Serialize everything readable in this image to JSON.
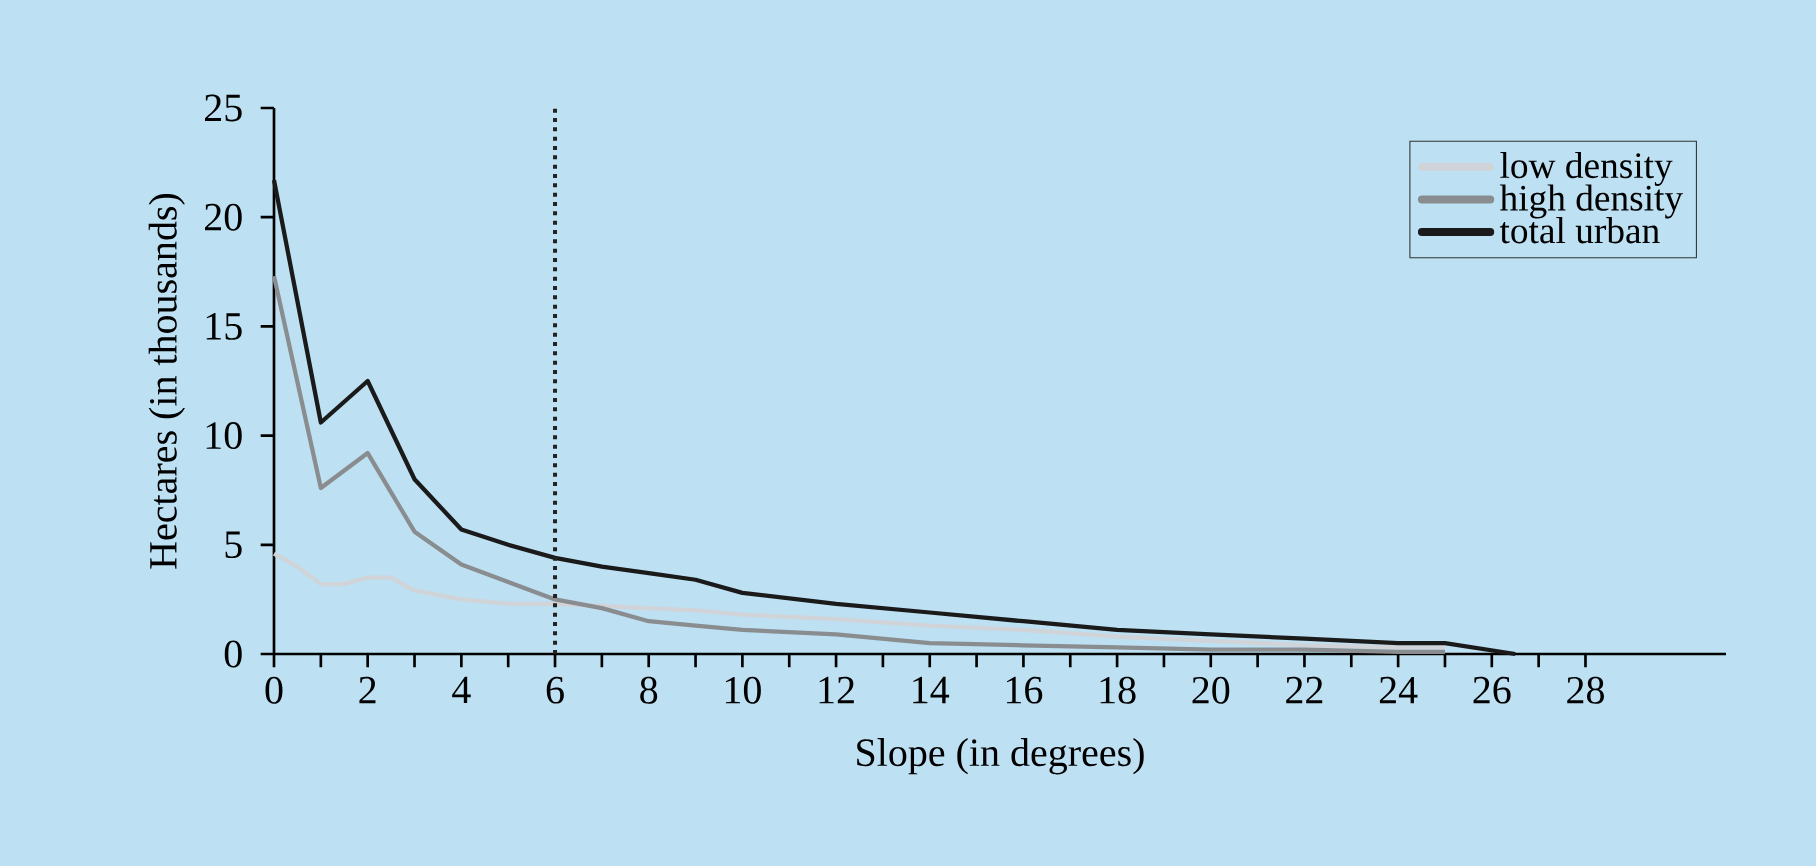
{
  "chart_data": {
    "type": "line",
    "xlabel": "Slope (in degrees)",
    "ylabel": "Hectares (in thousands)",
    "xlim": [
      0,
      31
    ],
    "xticks": [
      0,
      2,
      4,
      6,
      8,
      10,
      12,
      14,
      16,
      18,
      20,
      22,
      24,
      26,
      28
    ],
    "ylim": [
      0,
      25
    ],
    "yticks": [
      0,
      5,
      10,
      15,
      20,
      25
    ],
    "legend": "top right",
    "grid": false,
    "ref_lines": [
      {
        "axis": "x",
        "value": 6,
        "line_style": "dotted",
        "color": "#222222"
      }
    ],
    "series": [
      {
        "name": "low density",
        "color": "#d0d4d8",
        "x": [
          0,
          0.5,
          1,
          1.5,
          2,
          2.5,
          3,
          4,
          5,
          6,
          7,
          8,
          9,
          10,
          12,
          14,
          16,
          18,
          20,
          22,
          24,
          25
        ],
        "values": [
          4.6,
          4.0,
          3.2,
          3.2,
          3.5,
          3.5,
          2.9,
          2.5,
          2.3,
          2.3,
          2.2,
          2.1,
          2.0,
          1.8,
          1.6,
          1.3,
          1.1,
          0.8,
          0.6,
          0.4,
          0.3,
          0.3
        ]
      },
      {
        "name": "high density",
        "color": "#8a8d90",
        "x": [
          0,
          1,
          2,
          3,
          4,
          5,
          6,
          7,
          8,
          9,
          10,
          12,
          14,
          16,
          18,
          20,
          22,
          24,
          25
        ],
        "values": [
          17.3,
          7.6,
          9.2,
          5.6,
          4.1,
          3.3,
          2.5,
          2.1,
          1.5,
          1.3,
          1.1,
          0.9,
          0.5,
          0.4,
          0.3,
          0.2,
          0.2,
          0.1,
          0.1
        ]
      },
      {
        "name": "total urban",
        "color": "#1a1a1a",
        "x": [
          0,
          1,
          2,
          3,
          4,
          5,
          6,
          7,
          8,
          9,
          10,
          12,
          14,
          16,
          18,
          20,
          22,
          24,
          25,
          26.5
        ],
        "values": [
          21.7,
          10.6,
          12.5,
          8.0,
          5.7,
          5.0,
          4.4,
          4.0,
          3.7,
          3.4,
          2.8,
          2.3,
          1.9,
          1.5,
          1.1,
          0.9,
          0.7,
          0.5,
          0.5,
          0
        ]
      }
    ]
  }
}
